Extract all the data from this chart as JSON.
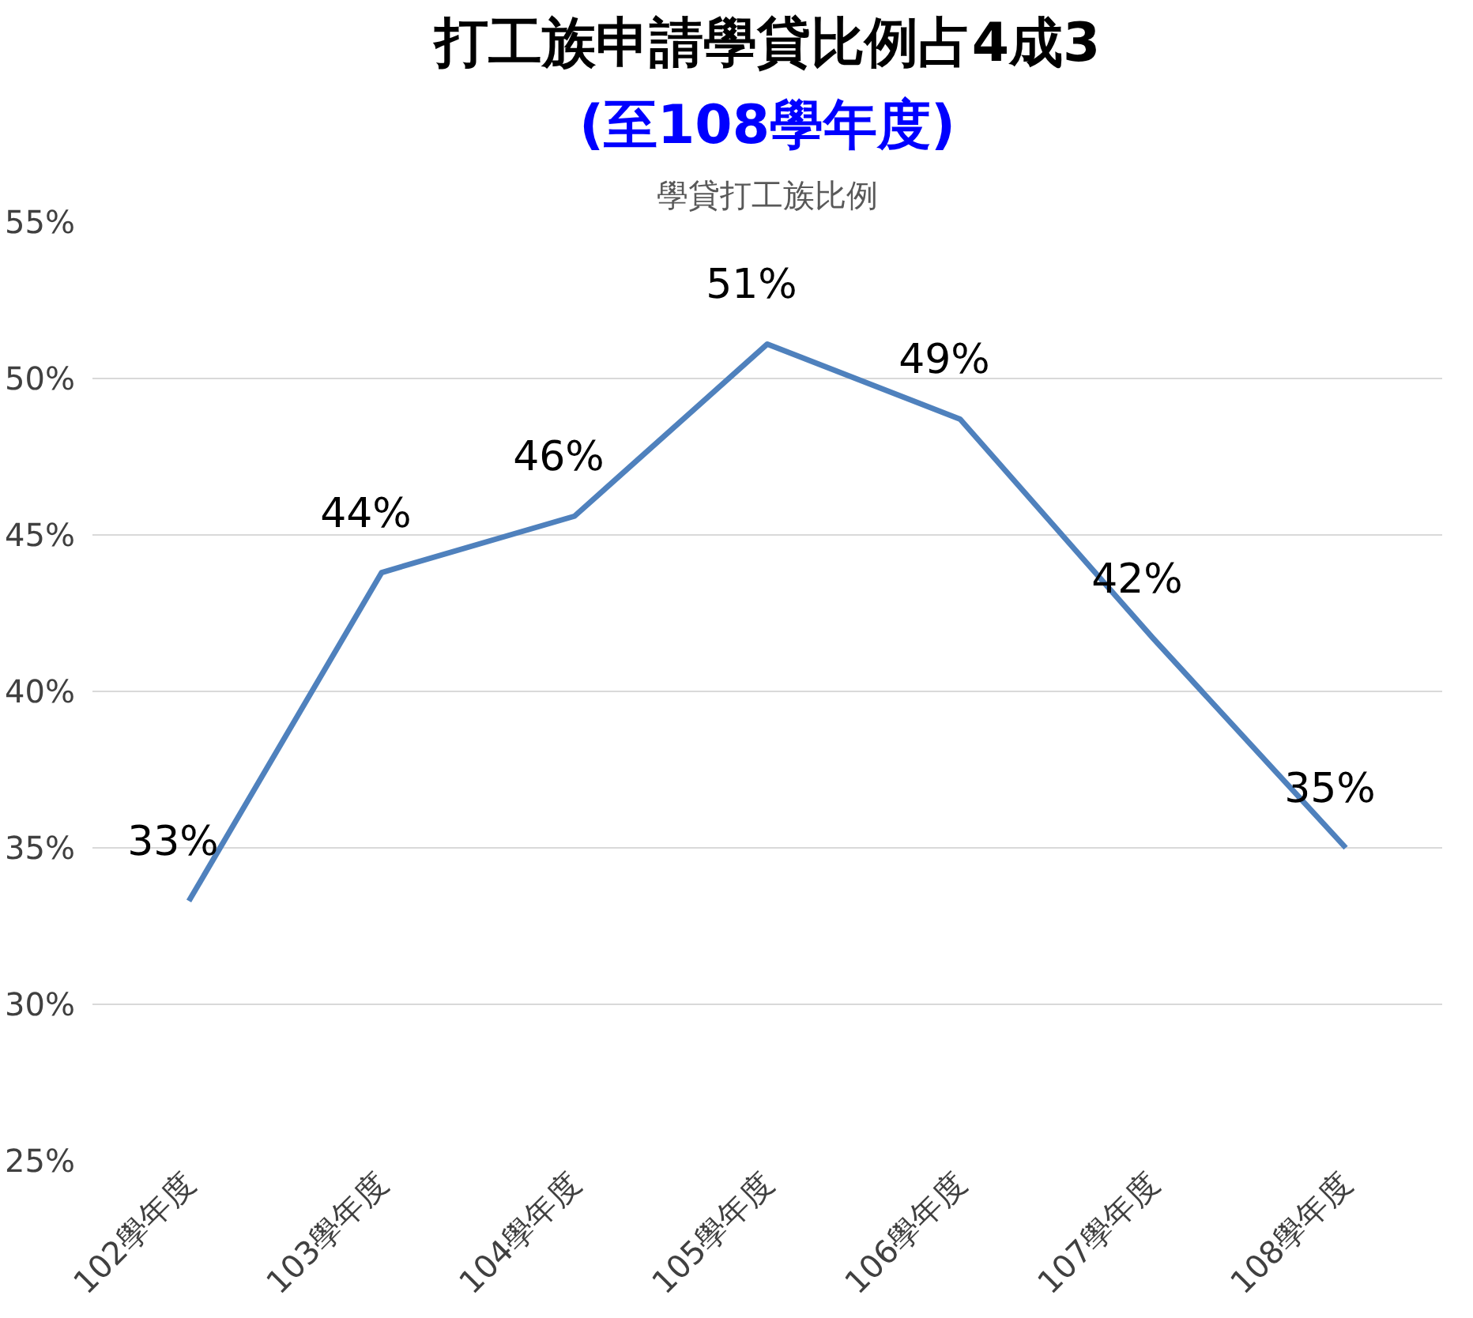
{
  "chart_data": {
    "type": "line",
    "title": "打工族申請學貸比例占4成3",
    "subtitle": "(至108學年度)",
    "annotations": [
      "學貸打工族比例"
    ],
    "categories": [
      "102學年度",
      "103學年度",
      "104學年度",
      "105學年度",
      "106學年度",
      "107學年度",
      "108學年度"
    ],
    "series": [
      {
        "color": "#4f81bd",
        "values": [
          33.3,
          43.8,
          45.6,
          51.1,
          48.7,
          41.7,
          35.0
        ],
        "value_labels": [
          "33%",
          "44%",
          "46%",
          "51%",
          "49%",
          "42%",
          "35%"
        ]
      }
    ],
    "ylim": [
      25,
      55
    ],
    "yticks": [
      {
        "value": 25,
        "label": "25%"
      },
      {
        "value": 30,
        "label": "30%"
      },
      {
        "value": 35,
        "label": "35%"
      },
      {
        "value": 40,
        "label": "40%"
      },
      {
        "value": 45,
        "label": "45%"
      },
      {
        "value": 50,
        "label": "50%"
      },
      {
        "value": 55,
        "label": "55%"
      }
    ],
    "grid": "y",
    "marker": "none",
    "line_style": "solid"
  }
}
